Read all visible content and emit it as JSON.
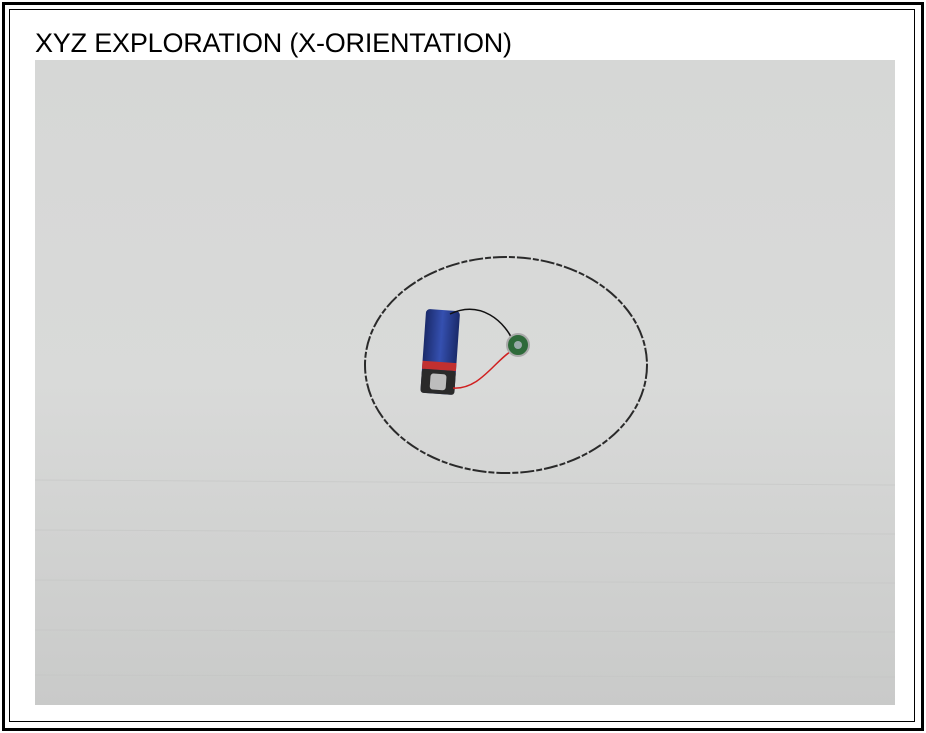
{
  "title": "XYZ EXPLORATION (X-ORIENTATION)"
}
